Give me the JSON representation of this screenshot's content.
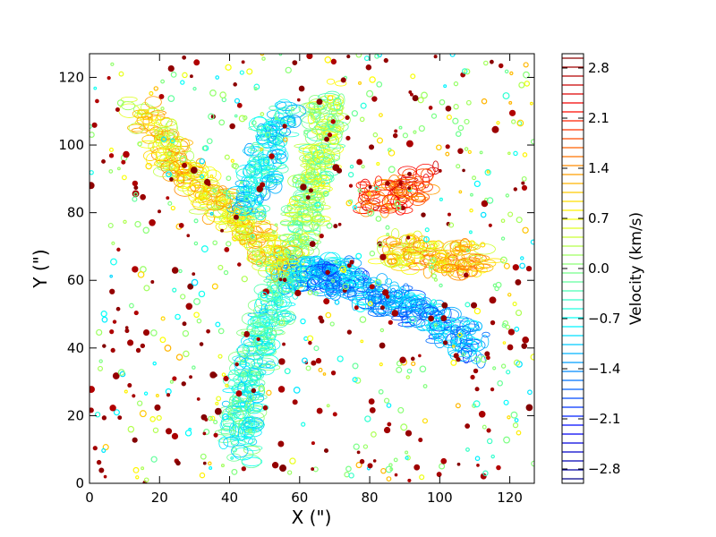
{
  "chart_data": {
    "type": "contour",
    "title": "",
    "xlabel": "X (\")",
    "ylabel": "Y (\")",
    "xlim": [
      0,
      127
    ],
    "ylim": [
      0,
      127
    ],
    "x_ticks": [
      0,
      20,
      40,
      60,
      80,
      100,
      120
    ],
    "y_ticks": [
      0,
      20,
      40,
      60,
      80,
      100,
      120
    ],
    "colorbar": {
      "label": "Velocity (km/s)",
      "range": [
        -3.0,
        3.0
      ],
      "ticks": [
        2.8,
        2.1,
        1.4,
        0.7,
        0.0,
        -0.7,
        -1.4,
        -2.1,
        -2.8
      ],
      "tick_labels": [
        "2.8",
        "2.1",
        "1.4",
        "0.7",
        "0.0",
        "−0.7",
        "−1.4",
        "−2.1",
        "−2.8"
      ],
      "levels": 48,
      "colormap": "jet"
    },
    "structures": [
      {
        "name": "ne-filament",
        "points": [
          [
            55,
            60
          ],
          [
            62,
            80
          ],
          [
            66,
            100
          ],
          [
            68,
            115
          ]
        ],
        "velocity": 0.2
      },
      {
        "name": "central-hub",
        "points": [
          [
            55,
            62
          ],
          [
            65,
            62
          ],
          [
            75,
            62
          ]
        ],
        "velocity": -1.2
      },
      {
        "name": "se-filament",
        "points": [
          [
            65,
            62
          ],
          [
            85,
            55
          ],
          [
            100,
            48
          ],
          [
            110,
            40
          ]
        ],
        "velocity": -1.3
      },
      {
        "name": "sw-filament",
        "points": [
          [
            55,
            58
          ],
          [
            50,
            45
          ],
          [
            45,
            30
          ],
          [
            42,
            10
          ]
        ],
        "velocity": -0.5
      },
      {
        "name": "nw-filament",
        "points": [
          [
            55,
            65
          ],
          [
            40,
            80
          ],
          [
            25,
            95
          ],
          [
            15,
            110
          ]
        ],
        "velocity": 0.8
      },
      {
        "name": "n-filament",
        "points": [
          [
            45,
            80
          ],
          [
            50,
            95
          ],
          [
            55,
            110
          ]
        ],
        "velocity": -0.8
      },
      {
        "name": "ne-red-clump",
        "points": [
          [
            80,
            85
          ],
          [
            90,
            85
          ],
          [
            95,
            90
          ]
        ],
        "velocity": 1.9
      },
      {
        "name": "e-arm",
        "points": [
          [
            85,
            70
          ],
          [
            100,
            66
          ],
          [
            112,
            66
          ]
        ],
        "velocity": 1.0
      }
    ]
  }
}
